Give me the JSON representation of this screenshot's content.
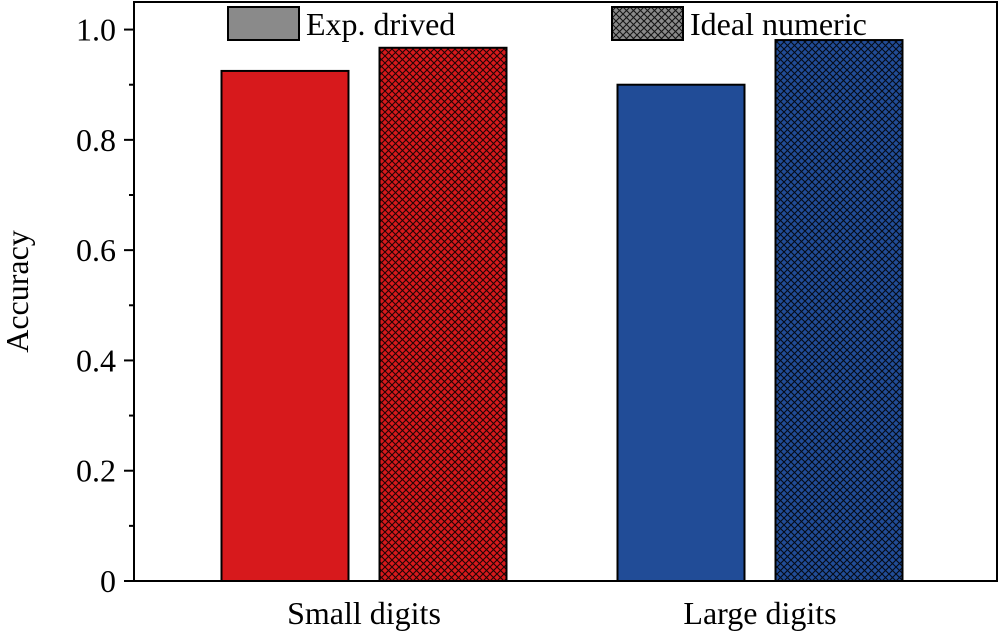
{
  "chart_data": {
    "type": "bar",
    "categories": [
      "Small digits",
      "Large digits"
    ],
    "series": [
      {
        "name": "Exp. drived",
        "values": [
          0.925,
          0.9
        ],
        "pattern": "solid"
      },
      {
        "name": "Ideal numeric",
        "values": [
          0.967,
          0.981
        ],
        "pattern": "crosshatch"
      }
    ],
    "category_colors": [
      "#d7191c",
      "#214c97"
    ],
    "legend_colors": [
      "#8a8a8a",
      "#8a8a8a"
    ],
    "xlabel": "",
    "ylabel": "Accuracy",
    "ylim": [
      0,
      1.05
    ],
    "y_ticks": [
      "0",
      "0.2",
      "0.4",
      "0.6",
      "0.8",
      "1.0"
    ],
    "y_tick_values": [
      0,
      0.2,
      0.4,
      0.6,
      0.8,
      1.0
    ],
    "y_minor_step": 0.1,
    "grid": false,
    "legend_position": "top"
  }
}
